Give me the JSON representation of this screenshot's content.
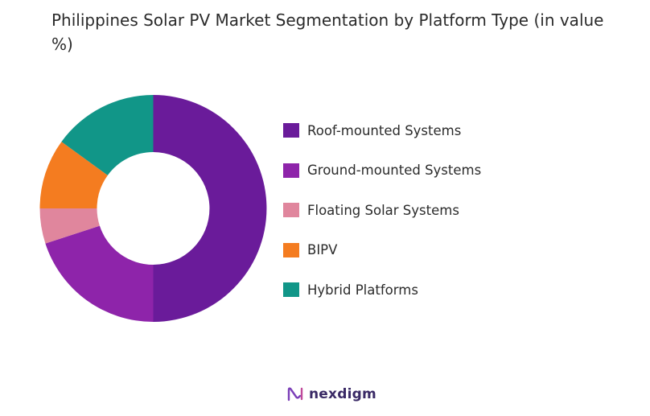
{
  "title": "Philippines Solar PV Market Segmentation by Platform Type (in value %)",
  "brand": "nexdigm",
  "chart_data": {
    "type": "pie",
    "title": "Philippines Solar PV Market Segmentation by Platform Type (in value %)",
    "unit": "%",
    "categories": [
      "Roof-mounted Systems",
      "Ground-mounted Systems",
      "Floating Solar Systems",
      "BIPV",
      "Hybrid Platforms"
    ],
    "values": [
      50,
      20,
      5,
      10,
      15
    ],
    "colors": [
      "#6a1b9a",
      "#8e24aa",
      "#e0869d",
      "#f47c20",
      "#119688"
    ],
    "legend_position": "right",
    "hole": true
  }
}
